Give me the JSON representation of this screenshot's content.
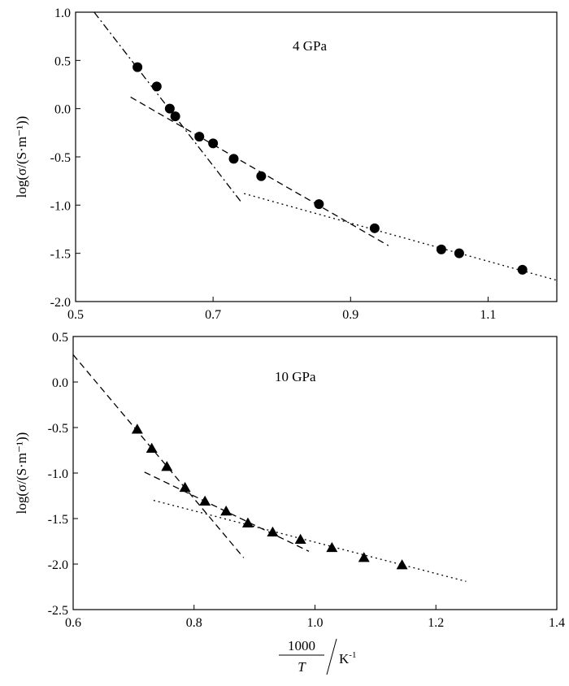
{
  "chart_data": [
    {
      "type": "scatter",
      "annotation": "4 GPa",
      "ylabel": "log(σ/(S·m⁻¹))",
      "xlim": [
        0.5,
        1.2
      ],
      "ylim": [
        -2.0,
        1.0
      ],
      "xticks": [
        "0.5",
        "0.7",
        "0.9",
        "1.1"
      ],
      "xtick_values": [
        0.5,
        0.7,
        0.9,
        1.1
      ],
      "yticks": [
        "1.0",
        "0.5",
        "0.0",
        "-0.5",
        "-1.0",
        "-1.5",
        "-2.0"
      ],
      "ytick_values": [
        1.0,
        0.5,
        0.0,
        -0.5,
        -1.0,
        -1.5,
        -2.0
      ],
      "marker": "circle",
      "points": {
        "x": [
          0.59,
          0.618,
          0.637,
          0.645,
          0.68,
          0.7,
          0.73,
          0.77,
          0.854,
          0.935,
          1.032,
          1.058,
          1.15
        ],
        "y": [
          0.43,
          0.23,
          0.0,
          -0.08,
          -0.29,
          -0.36,
          -0.52,
          -0.7,
          -0.99,
          -1.24,
          -1.46,
          -1.5,
          -1.67
        ]
      },
      "fit_lines": [
        {
          "style": "dash-dot",
          "x": [
            0.527,
            0.74
          ],
          "y": [
            1.0,
            -0.96
          ]
        },
        {
          "style": "dashed",
          "x": [
            0.58,
            0.955
          ],
          "y": [
            0.12,
            -1.42
          ]
        },
        {
          "style": "dotted",
          "x": [
            0.745,
            1.2
          ],
          "y": [
            -0.88,
            -1.78
          ]
        }
      ]
    },
    {
      "type": "scatter",
      "annotation": "10  GPa",
      "ylabel": "log(σ/(S·m⁻¹))",
      "xlim": [
        0.6,
        1.4
      ],
      "ylim": [
        -2.5,
        0.5
      ],
      "xticks": [
        "0.6",
        "0.8",
        "1.0",
        "1.2",
        "1.4"
      ],
      "xtick_values": [
        0.6,
        0.8,
        1.0,
        1.2,
        1.4
      ],
      "yticks": [
        "0.5",
        "0.0",
        "-0.5",
        "-1.0",
        "-1.5",
        "-2.0",
        "-2.5"
      ],
      "ytick_values": [
        0.5,
        0.0,
        -0.5,
        -1.0,
        -1.5,
        -2.0,
        -2.5
      ],
      "marker": "triangle",
      "points": {
        "x": [
          0.706,
          0.73,
          0.755,
          0.785,
          0.818,
          0.853,
          0.889,
          0.93,
          0.976,
          1.028,
          1.081,
          1.144
        ],
        "y": [
          -0.52,
          -0.73,
          -0.93,
          -1.16,
          -1.31,
          -1.42,
          -1.55,
          -1.65,
          -1.73,
          -1.82,
          -1.93,
          -2.01
        ]
      },
      "fit_lines": [
        {
          "style": "dashed",
          "x": [
            0.6,
            0.882
          ],
          "y": [
            0.3,
            -1.93
          ]
        },
        {
          "style": "dashed",
          "x": [
            0.718,
            0.99
          ],
          "y": [
            -0.99,
            -1.86
          ]
        },
        {
          "style": "dotted",
          "x": [
            0.733,
            1.25
          ],
          "y": [
            -1.3,
            -2.19
          ]
        }
      ]
    }
  ],
  "xlabel": {
    "numerator": "1000",
    "denominator": "T",
    "unit": "K",
    "unit_exponent": "-1"
  }
}
